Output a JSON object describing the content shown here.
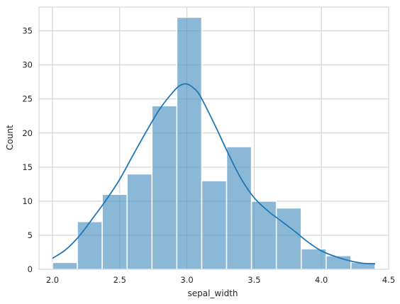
{
  "chart_data": {
    "type": "bar",
    "xlabel": "sepal_width",
    "ylabel": "Count",
    "xlim": [
      1.9,
      4.5
    ],
    "ylim": [
      0,
      38.5
    ],
    "grid": true,
    "bar_color": "#5b9ac8",
    "line_color": "#1f77b4",
    "x_ticks": [
      2.0,
      2.5,
      3.0,
      3.5,
      4.0,
      4.5
    ],
    "x_tick_labels": [
      "2.0",
      "2.5",
      "3.0",
      "3.5",
      "4.0",
      "4.5"
    ],
    "y_ticks": [
      0,
      5,
      10,
      15,
      20,
      25,
      30,
      35
    ],
    "y_tick_labels": [
      "0",
      "5",
      "10",
      "15",
      "20",
      "25",
      "30",
      "35"
    ],
    "bins": [
      {
        "start": 2.0,
        "end": 2.185,
        "count": 1
      },
      {
        "start": 2.185,
        "end": 2.37,
        "count": 7
      },
      {
        "start": 2.37,
        "end": 2.555,
        "count": 11
      },
      {
        "start": 2.555,
        "end": 2.74,
        "count": 14
      },
      {
        "start": 2.74,
        "end": 2.925,
        "count": 24
      },
      {
        "start": 2.925,
        "end": 3.11,
        "count": 37
      },
      {
        "start": 3.11,
        "end": 3.295,
        "count": 13
      },
      {
        "start": 3.295,
        "end": 3.48,
        "count": 18
      },
      {
        "start": 3.48,
        "end": 3.665,
        "count": 10
      },
      {
        "start": 3.665,
        "end": 3.85,
        "count": 9
      },
      {
        "start": 3.85,
        "end": 4.035,
        "count": 3
      },
      {
        "start": 4.035,
        "end": 4.22,
        "count": 2
      },
      {
        "start": 4.22,
        "end": 4.4,
        "count": 1
      }
    ],
    "kde": {
      "x": [
        2.0,
        2.1,
        2.2,
        2.3,
        2.4,
        2.5,
        2.6,
        2.7,
        2.8,
        2.9,
        2.95,
        3.0,
        3.05,
        3.1,
        3.2,
        3.3,
        3.4,
        3.5,
        3.6,
        3.7,
        3.8,
        3.9,
        4.0,
        4.1,
        4.2,
        4.3,
        4.4
      ],
      "y": [
        1.6,
        2.9,
        4.9,
        7.5,
        10.2,
        13.2,
        16.8,
        20.3,
        23.6,
        26.1,
        27.0,
        27.2,
        26.6,
        25.4,
        21.5,
        17.3,
        13.4,
        10.5,
        8.6,
        7.1,
        5.6,
        4.0,
        2.7,
        1.9,
        1.3,
        0.9,
        0.8
      ]
    }
  }
}
